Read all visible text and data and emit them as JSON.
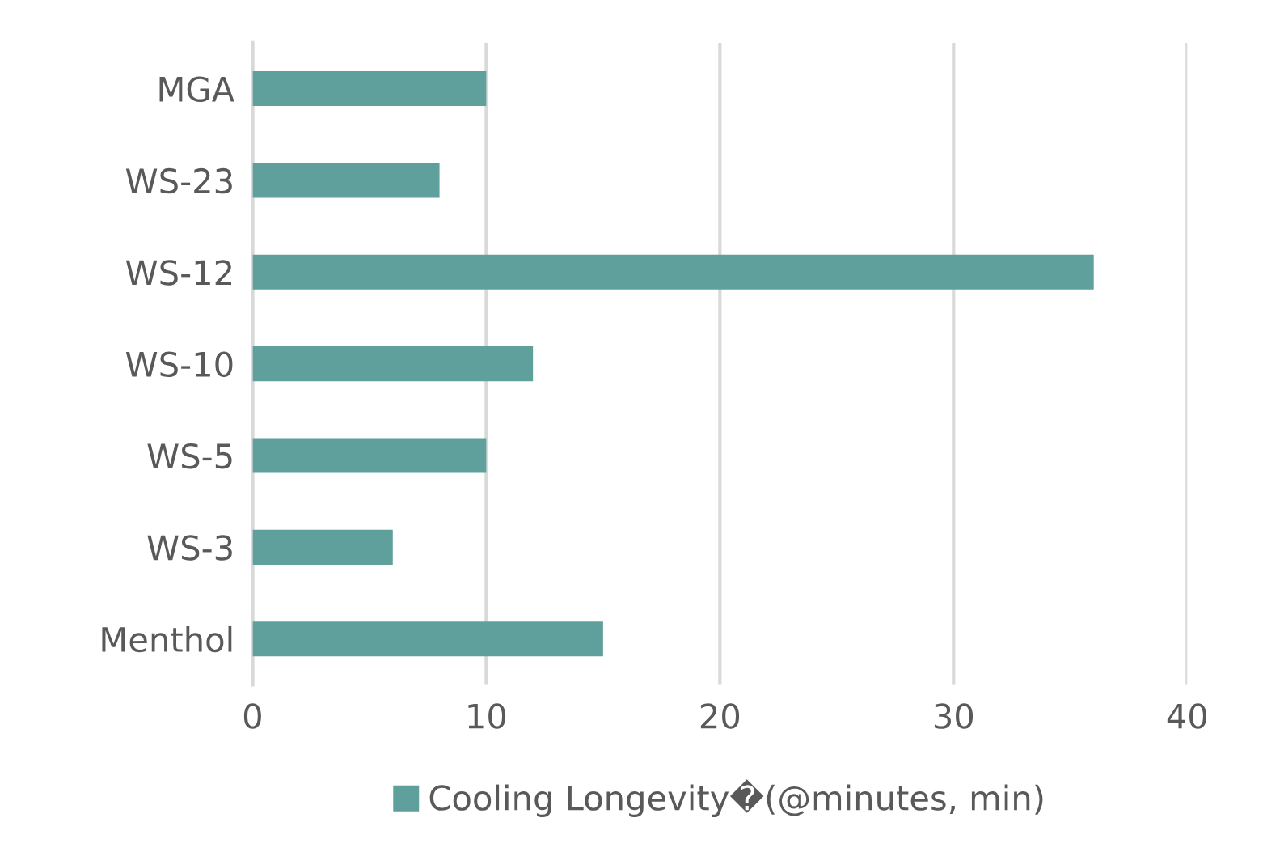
{
  "chart_data": {
    "type": "bar",
    "orientation": "horizontal",
    "categories": [
      "MGA",
      "WS-23",
      "WS-12",
      "WS-10",
      "WS-5",
      "WS-3",
      "Menthol"
    ],
    "series": [
      {
        "name": "Cooling Longevity�(@minutes, min)",
        "color": "#5f9f9c",
        "values": [
          10,
          8,
          36,
          12,
          10,
          6,
          15
        ]
      }
    ],
    "xlim": [
      0,
      40
    ],
    "xticks": [
      0,
      10,
      20,
      30,
      40
    ],
    "grid": "x",
    "legend": "bottom"
  }
}
